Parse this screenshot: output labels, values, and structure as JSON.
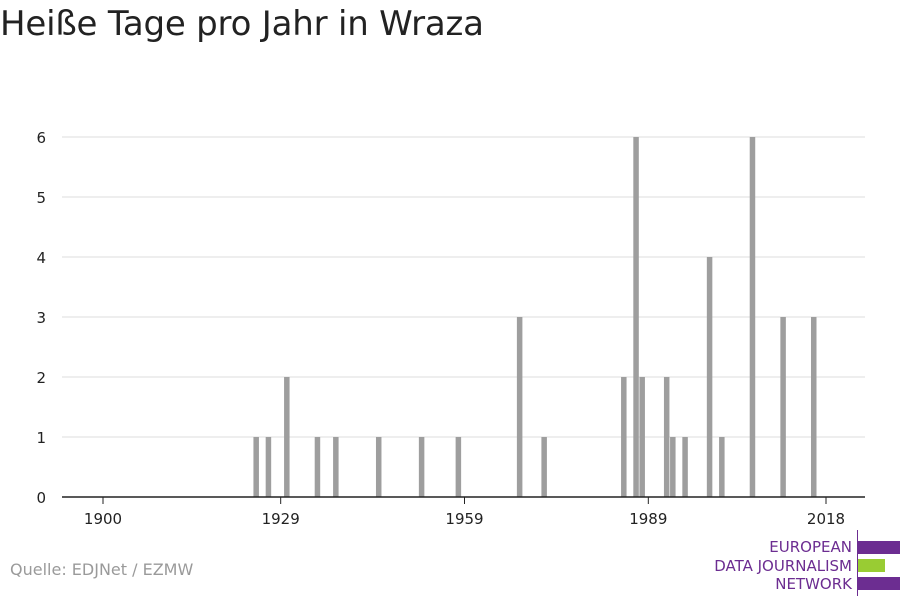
{
  "title": "Heiße Tage pro Jahr in Wraza",
  "source": "Quelle: EDJNet / EZMW",
  "logo": {
    "lines": [
      "EUROPEAN",
      "DATA JOURNALISM",
      "NETWORK"
    ],
    "colors": {
      "primary": "#6c2d91",
      "accent": "#99cc33"
    }
  },
  "colors": {
    "bar": "#9e9e9e",
    "grid": "#dddddd",
    "axis": "#222222",
    "text": "#222222"
  },
  "chart_data": {
    "type": "bar",
    "xlim": [
      1894,
      2021
    ],
    "ylim": [
      0,
      6
    ],
    "xticks": [
      1900,
      1929,
      1959,
      1989,
      2018
    ],
    "yticks": [
      0,
      1,
      2,
      3,
      4,
      5,
      6
    ],
    "grid": true,
    "x": [
      1925,
      1927,
      1930,
      1935,
      1938,
      1945,
      1952,
      1958,
      1968,
      1972,
      1985,
      1987,
      1988,
      1992,
      1993,
      1995,
      1999,
      2001,
      2006,
      2011,
      2016
    ],
    "values": [
      1,
      1,
      2,
      1,
      1,
      1,
      1,
      1,
      3,
      1,
      2,
      6,
      2,
      2,
      1,
      1,
      4,
      1,
      6,
      3,
      3
    ]
  }
}
